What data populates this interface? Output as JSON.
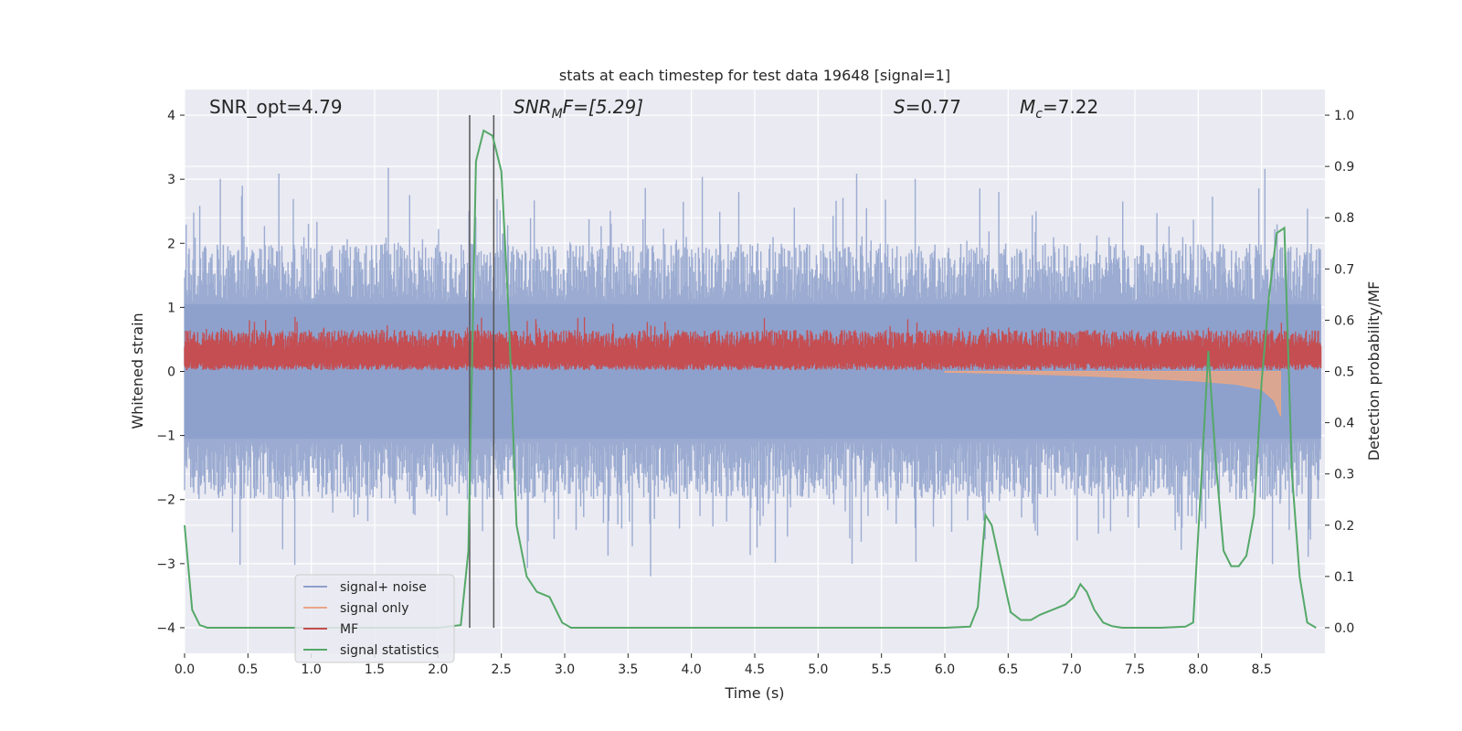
{
  "chart_data": {
    "type": "line",
    "title": "stats at each timestep for test data 19648 [signal=1]",
    "xlabel": "Time (s)",
    "ylabel_left": "Whitened strain",
    "ylabel_right": "Detection probability/MF",
    "xlim": [
      0,
      9
    ],
    "ylim_left": [
      -4.4,
      4.4
    ],
    "ylim_right": [
      -0.05,
      1.05
    ],
    "xticks": [
      "0.0",
      "0.5",
      "1.0",
      "1.5",
      "2.0",
      "2.5",
      "3.0",
      "3.5",
      "4.0",
      "4.5",
      "5.0",
      "5.5",
      "6.0",
      "6.5",
      "7.0",
      "7.5",
      "8.0",
      "8.5"
    ],
    "yticks_left": [
      "4",
      "3",
      "2",
      "1",
      "0",
      "−1",
      "−2",
      "−3",
      "−4"
    ],
    "yticks_right": [
      "1.0",
      "0.9",
      "0.8",
      "0.7",
      "0.6",
      "0.5",
      "0.4",
      "0.3",
      "0.2",
      "0.1",
      "0.0"
    ],
    "annotations": {
      "snr_opt": "SNR_opt=4.79",
      "snr_mf_base": "SNR",
      "snr_mf_sub": "M",
      "snr_mf_rest": "F=[5.29]",
      "s_var": "S",
      "s_val": "=0.77",
      "mc_var": "M",
      "mc_sub": "c",
      "mc_val": "=7.22"
    },
    "vlines_x": [
      2.25,
      2.44
    ],
    "legend": {
      "position": "lower-left",
      "entries": [
        "signal+ noise",
        "signal only",
        "MF",
        "signal statistics"
      ]
    },
    "colors": {
      "background": "#eaeaf2",
      "grid": "#ffffff",
      "signal_noise": "#8da0cb",
      "signal_only": "#e8a787",
      "mf": "#c44e52",
      "signal_statistics": "#55a868",
      "vline": "#555555"
    },
    "series": [
      {
        "name": "signal+ noise",
        "axis": "left",
        "kind": "noise-band",
        "approx_range": [
          -4.0,
          4.0
        ]
      },
      {
        "name": "signal only",
        "axis": "left",
        "kind": "chirp",
        "x": [
          6.0,
          6.5,
          7.0,
          7.5,
          8.0,
          8.3,
          8.5,
          8.6,
          8.65
        ],
        "amplitude": [
          0.01,
          0.03,
          0.06,
          0.1,
          0.15,
          0.2,
          0.28,
          0.45,
          0.7
        ]
      },
      {
        "name": "MF",
        "axis": "left",
        "kind": "noise-band",
        "approx_range": [
          0.0,
          0.85
        ]
      },
      {
        "name": "signal statistics",
        "axis": "right",
        "x": [
          0.0,
          0.06,
          0.12,
          0.18,
          0.3,
          0.5,
          1.0,
          1.5,
          2.0,
          2.18,
          2.24,
          2.3,
          2.36,
          2.43,
          2.5,
          2.56,
          2.62,
          2.7,
          2.78,
          2.88,
          2.98,
          3.05,
          3.5,
          4.0,
          5.0,
          6.0,
          6.2,
          6.26,
          6.32,
          6.37,
          6.44,
          6.52,
          6.6,
          6.68,
          6.75,
          6.85,
          6.95,
          7.02,
          7.07,
          7.12,
          7.18,
          7.25,
          7.32,
          7.4,
          7.5,
          7.7,
          7.9,
          7.96,
          8.02,
          8.08,
          8.14,
          8.2,
          8.26,
          8.32,
          8.38,
          8.44,
          8.5,
          8.56,
          8.62,
          8.68,
          8.74,
          8.8,
          8.86,
          8.93
        ],
        "y": [
          0.2,
          0.035,
          0.005,
          0.0,
          0.0,
          0.0,
          0.0,
          0.0,
          0.0,
          0.005,
          0.15,
          0.91,
          0.97,
          0.96,
          0.89,
          0.6,
          0.2,
          0.1,
          0.07,
          0.06,
          0.01,
          0.0,
          0.0,
          0.0,
          0.0,
          0.0,
          0.002,
          0.04,
          0.22,
          0.2,
          0.12,
          0.03,
          0.015,
          0.015,
          0.025,
          0.035,
          0.045,
          0.06,
          0.085,
          0.07,
          0.035,
          0.01,
          0.003,
          0.0,
          0.0,
          0.0,
          0.002,
          0.01,
          0.27,
          0.54,
          0.32,
          0.15,
          0.12,
          0.12,
          0.14,
          0.22,
          0.48,
          0.65,
          0.77,
          0.78,
          0.3,
          0.1,
          0.01,
          0.0
        ]
      }
    ]
  }
}
